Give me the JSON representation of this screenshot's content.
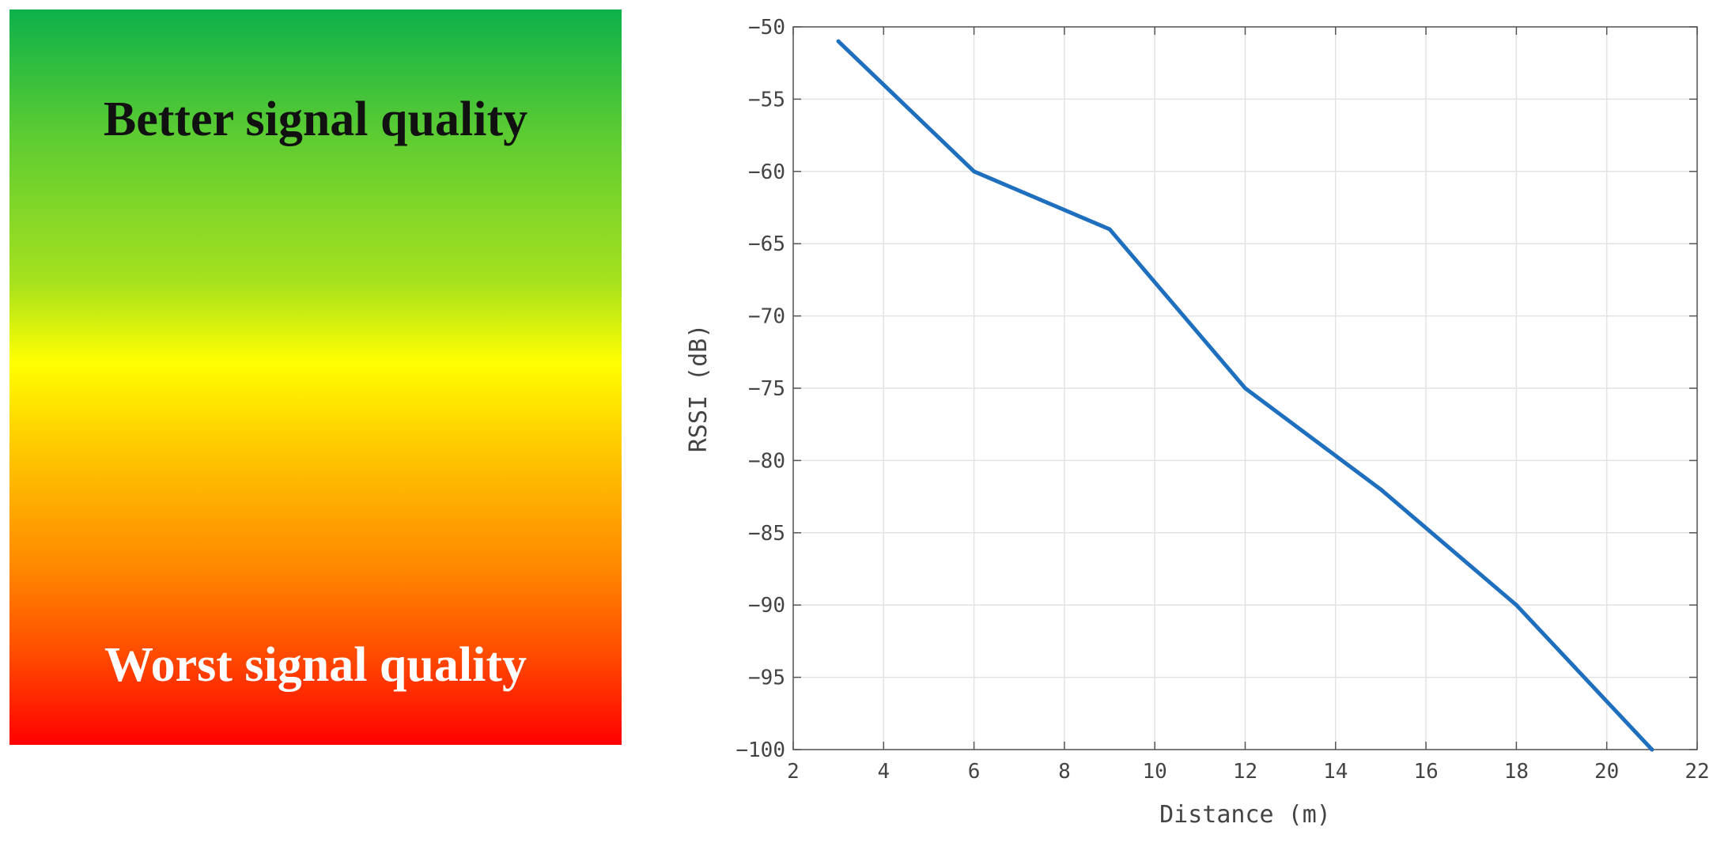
{
  "panel": {
    "top_label": "Better signal quality",
    "bottom_label": "Worst signal quality",
    "colors": {
      "top": "#0db14b",
      "middle": "#ffff00",
      "bottom": "#ff0000"
    }
  },
  "chart_data": {
    "type": "line",
    "title": "",
    "xlabel": "Distance (m)",
    "ylabel": "RSSI (dB)",
    "xlim": [
      2,
      22
    ],
    "ylim": [
      -100,
      -50
    ],
    "xticks": [
      2,
      4,
      6,
      8,
      10,
      12,
      14,
      16,
      18,
      20,
      22
    ],
    "yticks": [
      -50,
      -55,
      -60,
      -65,
      -70,
      -75,
      -80,
      -85,
      -90,
      -95,
      -100
    ],
    "grid": true,
    "series": [
      {
        "color": "#1f6fbf",
        "x": [
          3,
          6,
          9,
          12,
          15,
          18,
          21
        ],
        "y": [
          -51,
          -60,
          -64,
          -75,
          -82,
          -90,
          -100
        ]
      }
    ]
  }
}
